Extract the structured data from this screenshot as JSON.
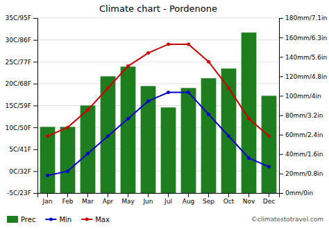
{
  "chart_data": {
    "type": "bar",
    "title": "Climate chart - Pordenone",
    "categories": [
      "Jan",
      "Feb",
      "Mar",
      "Apr",
      "May",
      "Jun",
      "Jul",
      "Aug",
      "Sep",
      "Oct",
      "Nov",
      "Dec"
    ],
    "series": [
      {
        "name": "Prec",
        "type": "bar",
        "axis": "y2",
        "color": "#1e7d1e",
        "values": [
          68,
          68,
          90,
          120,
          130,
          110,
          88,
          108,
          118,
          128,
          165,
          100
        ]
      },
      {
        "name": "Min",
        "type": "line",
        "color": "#0000cc",
        "marker": "circle",
        "line_style": "solid",
        "values": [
          -1,
          0,
          4,
          8,
          12,
          16,
          18,
          18,
          13,
          8,
          3,
          1
        ]
      },
      {
        "name": "Max",
        "type": "line",
        "color": "#cc0000",
        "marker": "circle",
        "line_style": "solid",
        "values": [
          8,
          10,
          14,
          19,
          24,
          27,
          29,
          29,
          25,
          19,
          12,
          8
        ]
      }
    ],
    "ylim": [
      -5,
      35
    ],
    "yticks": [
      {
        "value": -5,
        "label": "-5C/23F"
      },
      {
        "value": 0,
        "label": "0C/32F"
      },
      {
        "value": 5,
        "label": "5C/41F"
      },
      {
        "value": 10,
        "label": "10C/50F"
      },
      {
        "value": 15,
        "label": "15C/59F"
      },
      {
        "value": 20,
        "label": "20C/68F"
      },
      {
        "value": 25,
        "label": "25C/77F"
      },
      {
        "value": 30,
        "label": "30C/86F"
      },
      {
        "value": 35,
        "label": "35C/95F"
      }
    ],
    "y2lim": [
      0,
      180
    ],
    "y2ticks": [
      {
        "value": 0,
        "label": "0mm/0in"
      },
      {
        "value": 20,
        "label": "20mm/0.8in"
      },
      {
        "value": 40,
        "label": "40mm/1.6in"
      },
      {
        "value": 60,
        "label": "60mm/2.4in"
      },
      {
        "value": 80,
        "label": "80mm/3.2in"
      },
      {
        "value": 100,
        "label": "100mm/4in"
      },
      {
        "value": 120,
        "label": "120mm/4.8in"
      },
      {
        "value": 140,
        "label": "140mm/5.6in"
      },
      {
        "value": 160,
        "label": "160mm/6.3in"
      },
      {
        "value": 180,
        "label": "180mm/7.1in"
      }
    ],
    "grid": true,
    "legend": "lower left",
    "annotations": [
      {
        "text": "©climatestotravel.com"
      }
    ]
  }
}
